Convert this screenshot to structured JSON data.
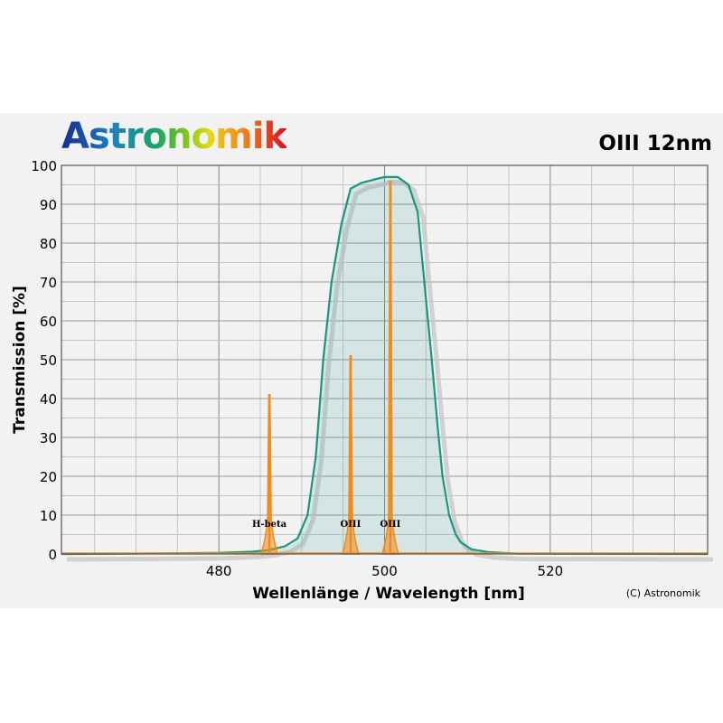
{
  "logo": "Astronomik",
  "chart_data": {
    "type": "line",
    "title": "OIII 12nm",
    "xlabel": "Wellenlänge / Wavelength [nm]",
    "ylabel": "Transmission [%]",
    "xlim": [
      461,
      539
    ],
    "ylim": [
      0,
      100
    ],
    "xticks": [
      480,
      500,
      520
    ],
    "yticks": [
      0,
      10,
      20,
      30,
      40,
      50,
      60,
      70,
      80,
      90,
      100
    ],
    "grid": true,
    "series": [
      {
        "type": "area",
        "color": "#1a9580",
        "x": [
          461,
          470,
          480,
          484,
          486,
          488,
          489.5,
          490.7,
          491.7,
          492.6,
          493.6,
          494.8,
          495.9,
          497.2,
          499,
          500,
          501.6,
          502.9,
          504,
          504.8,
          505.7,
          506.4,
          507,
          507.8,
          508.6,
          509.2,
          510.5,
          512.5,
          516,
          539
        ],
        "y": [
          0,
          0.1,
          0.3,
          0.6,
          1,
          2,
          4,
          10,
          25,
          50,
          70,
          85,
          94,
          95.5,
          96.5,
          97,
          97,
          95,
          88,
          70,
          50,
          33,
          20,
          10,
          5,
          3,
          1.2,
          0.5,
          0.1,
          0
        ]
      },
      {
        "type": "line",
        "color": "#f08a1a",
        "x": [
          461,
          539
        ],
        "y": [
          0,
          0
        ]
      }
    ],
    "emission_lines": [
      {
        "label": "H-beta",
        "x": 486.1,
        "peak": 41
      },
      {
        "label": "OIII",
        "x": 495.9,
        "peak": 51
      },
      {
        "label": "OIII",
        "x": 500.7,
        "peak": 96
      }
    ],
    "credit": "(C) Astronomik"
  }
}
